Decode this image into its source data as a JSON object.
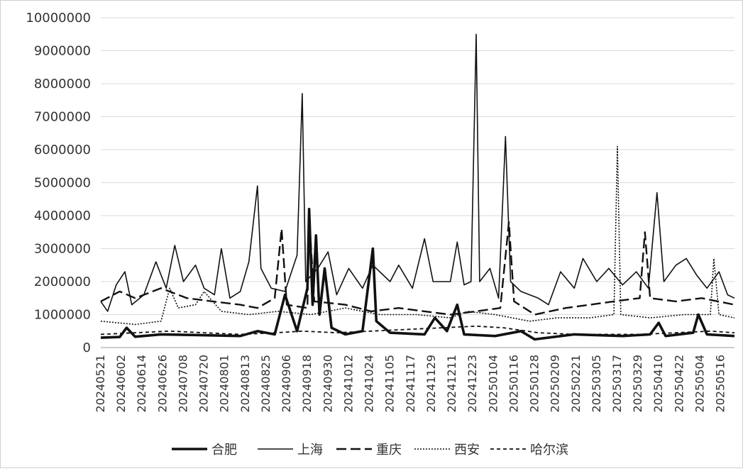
{
  "chart_data": {
    "type": "line",
    "title": "",
    "xlabel": "",
    "ylabel": "",
    "ylim": [
      0,
      10000000
    ],
    "y_ticks": [
      "0",
      "1000000",
      "2000000",
      "3000000",
      "4000000",
      "5000000",
      "6000000",
      "7000000",
      "8000000",
      "9000000",
      "10000000"
    ],
    "x_range": [
      "2024-05-21",
      "2025-05-24"
    ],
    "x_tick_labels": [
      "20240521",
      "20240602",
      "20240614",
      "20240626",
      "20240708",
      "20240720",
      "20240801",
      "20240813",
      "20240825",
      "20240906",
      "20240918",
      "20240930",
      "20241012",
      "20241024",
      "20241105",
      "20241117",
      "20241129",
      "20241211",
      "20241223",
      "20250104",
      "20250116",
      "20250128",
      "20250209",
      "20250221",
      "20250305",
      "20250317",
      "20250329",
      "20250410",
      "20250422",
      "20250504",
      "20250516"
    ],
    "grid": "horizontal",
    "legend_position": "bottom",
    "series": [
      {
        "name": "合肥",
        "style": "solid-thick",
        "values": [
          {
            "x": "2024-05-21",
            "y": 300000
          },
          {
            "x": "2024-06-01",
            "y": 320000
          },
          {
            "x": "2024-06-05",
            "y": 600000
          },
          {
            "x": "2024-06-10",
            "y": 330000
          },
          {
            "x": "2024-06-25",
            "y": 400000
          },
          {
            "x": "2024-07-15",
            "y": 380000
          },
          {
            "x": "2024-08-10",
            "y": 350000
          },
          {
            "x": "2024-08-20",
            "y": 500000
          },
          {
            "x": "2024-08-30",
            "y": 400000
          },
          {
            "x": "2024-09-05",
            "y": 1600000
          },
          {
            "x": "2024-09-12",
            "y": 500000
          },
          {
            "x": "2024-09-18",
            "y": 1800000
          },
          {
            "x": "2024-09-19",
            "y": 4200000
          },
          {
            "x": "2024-09-21",
            "y": 1300000
          },
          {
            "x": "2024-09-23",
            "y": 3400000
          },
          {
            "x": "2024-09-25",
            "y": 1000000
          },
          {
            "x": "2024-09-28",
            "y": 2400000
          },
          {
            "x": "2024-10-02",
            "y": 600000
          },
          {
            "x": "2024-10-10",
            "y": 400000
          },
          {
            "x": "2024-10-20",
            "y": 500000
          },
          {
            "x": "2024-10-26",
            "y": 3000000
          },
          {
            "x": "2024-10-28",
            "y": 800000
          },
          {
            "x": "2024-11-05",
            "y": 450000
          },
          {
            "x": "2024-11-25",
            "y": 400000
          },
          {
            "x": "2024-12-01",
            "y": 900000
          },
          {
            "x": "2024-12-08",
            "y": 500000
          },
          {
            "x": "2024-12-14",
            "y": 1300000
          },
          {
            "x": "2024-12-18",
            "y": 400000
          },
          {
            "x": "2025-01-05",
            "y": 350000
          },
          {
            "x": "2025-01-20",
            "y": 500000
          },
          {
            "x": "2025-01-28",
            "y": 250000
          },
          {
            "x": "2025-02-20",
            "y": 400000
          },
          {
            "x": "2025-03-20",
            "y": 350000
          },
          {
            "x": "2025-04-05",
            "y": 400000
          },
          {
            "x": "2025-04-10",
            "y": 750000
          },
          {
            "x": "2025-04-14",
            "y": 350000
          },
          {
            "x": "2025-04-30",
            "y": 450000
          },
          {
            "x": "2025-05-03",
            "y": 1000000
          },
          {
            "x": "2025-05-08",
            "y": 400000
          },
          {
            "x": "2025-05-24",
            "y": 350000
          }
        ]
      },
      {
        "name": "上海",
        "style": "solid",
        "values": [
          {
            "x": "2024-05-21",
            "y": 1400000
          },
          {
            "x": "2024-05-25",
            "y": 1100000
          },
          {
            "x": "2024-05-30",
            "y": 1900000
          },
          {
            "x": "2024-06-04",
            "y": 2300000
          },
          {
            "x": "2024-06-08",
            "y": 1300000
          },
          {
            "x": "2024-06-15",
            "y": 1600000
          },
          {
            "x": "2024-06-22",
            "y": 2600000
          },
          {
            "x": "2024-06-28",
            "y": 1800000
          },
          {
            "x": "2024-07-03",
            "y": 3100000
          },
          {
            "x": "2024-07-08",
            "y": 2000000
          },
          {
            "x": "2024-07-15",
            "y": 2500000
          },
          {
            "x": "2024-07-20",
            "y": 1800000
          },
          {
            "x": "2024-07-26",
            "y": 1600000
          },
          {
            "x": "2024-07-30",
            "y": 3000000
          },
          {
            "x": "2024-08-04",
            "y": 1500000
          },
          {
            "x": "2024-08-10",
            "y": 1700000
          },
          {
            "x": "2024-08-15",
            "y": 2600000
          },
          {
            "x": "2024-08-20",
            "y": 4900000
          },
          {
            "x": "2024-08-22",
            "y": 2400000
          },
          {
            "x": "2024-08-28",
            "y": 1800000
          },
          {
            "x": "2024-09-05",
            "y": 1700000
          },
          {
            "x": "2024-09-12",
            "y": 2800000
          },
          {
            "x": "2024-09-15",
            "y": 7700000
          },
          {
            "x": "2024-09-17",
            "y": 2000000
          },
          {
            "x": "2024-09-24",
            "y": 2400000
          },
          {
            "x": "2024-09-30",
            "y": 2900000
          },
          {
            "x": "2024-10-05",
            "y": 1600000
          },
          {
            "x": "2024-10-12",
            "y": 2400000
          },
          {
            "x": "2024-10-20",
            "y": 1800000
          },
          {
            "x": "2024-10-26",
            "y": 2500000
          },
          {
            "x": "2024-11-05",
            "y": 2000000
          },
          {
            "x": "2024-11-10",
            "y": 2500000
          },
          {
            "x": "2024-11-18",
            "y": 1800000
          },
          {
            "x": "2024-11-25",
            "y": 3300000
          },
          {
            "x": "2024-11-30",
            "y": 2000000
          },
          {
            "x": "2024-12-10",
            "y": 2000000
          },
          {
            "x": "2024-12-14",
            "y": 3200000
          },
          {
            "x": "2024-12-18",
            "y": 1900000
          },
          {
            "x": "2024-12-22",
            "y": 2000000
          },
          {
            "x": "2024-12-25",
            "y": 9500000
          },
          {
            "x": "2024-12-27",
            "y": 2000000
          },
          {
            "x": "2025-01-02",
            "y": 2400000
          },
          {
            "x": "2025-01-07",
            "y": 1500000
          },
          {
            "x": "2025-01-11",
            "y": 6400000
          },
          {
            "x": "2025-01-14",
            "y": 2000000
          },
          {
            "x": "2025-01-20",
            "y": 1700000
          },
          {
            "x": "2025-01-30",
            "y": 1500000
          },
          {
            "x": "2025-02-05",
            "y": 1300000
          },
          {
            "x": "2025-02-12",
            "y": 2300000
          },
          {
            "x": "2025-02-20",
            "y": 1800000
          },
          {
            "x": "2025-02-25",
            "y": 2700000
          },
          {
            "x": "2025-03-05",
            "y": 2000000
          },
          {
            "x": "2025-03-12",
            "y": 2400000
          },
          {
            "x": "2025-03-20",
            "y": 1900000
          },
          {
            "x": "2025-03-28",
            "y": 2300000
          },
          {
            "x": "2025-04-04",
            "y": 1800000
          },
          {
            "x": "2025-04-09",
            "y": 4700000
          },
          {
            "x": "2025-04-13",
            "y": 2000000
          },
          {
            "x": "2025-04-20",
            "y": 2500000
          },
          {
            "x": "2025-04-26",
            "y": 2700000
          },
          {
            "x": "2025-05-02",
            "y": 2200000
          },
          {
            "x": "2025-05-08",
            "y": 1800000
          },
          {
            "x": "2025-05-15",
            "y": 2300000
          },
          {
            "x": "2025-05-20",
            "y": 1600000
          },
          {
            "x": "2025-05-24",
            "y": 1500000
          }
        ]
      },
      {
        "name": "重庆",
        "style": "long-dash",
        "values": [
          {
            "x": "2024-05-21",
            "y": 1400000
          },
          {
            "x": "2024-06-01",
            "y": 1700000
          },
          {
            "x": "2024-06-10",
            "y": 1500000
          },
          {
            "x": "2024-06-25",
            "y": 1800000
          },
          {
            "x": "2024-07-10",
            "y": 1500000
          },
          {
            "x": "2024-07-25",
            "y": 1400000
          },
          {
            "x": "2024-08-10",
            "y": 1300000
          },
          {
            "x": "2024-08-20",
            "y": 1200000
          },
          {
            "x": "2024-08-30",
            "y": 1500000
          },
          {
            "x": "2024-09-03",
            "y": 3600000
          },
          {
            "x": "2024-09-06",
            "y": 1300000
          },
          {
            "x": "2024-09-18",
            "y": 1200000
          },
          {
            "x": "2024-09-19",
            "y": 4000000
          },
          {
            "x": "2024-09-22",
            "y": 1400000
          },
          {
            "x": "2024-10-10",
            "y": 1300000
          },
          {
            "x": "2024-10-25",
            "y": 1100000
          },
          {
            "x": "2024-11-10",
            "y": 1200000
          },
          {
            "x": "2024-11-25",
            "y": 1100000
          },
          {
            "x": "2024-12-10",
            "y": 1000000
          },
          {
            "x": "2024-12-25",
            "y": 1100000
          },
          {
            "x": "2025-01-08",
            "y": 1200000
          },
          {
            "x": "2025-01-13",
            "y": 3800000
          },
          {
            "x": "2025-01-16",
            "y": 1400000
          },
          {
            "x": "2025-01-28",
            "y": 1000000
          },
          {
            "x": "2025-02-15",
            "y": 1200000
          },
          {
            "x": "2025-03-01",
            "y": 1300000
          },
          {
            "x": "2025-03-15",
            "y": 1400000
          },
          {
            "x": "2025-03-30",
            "y": 1500000
          },
          {
            "x": "2025-04-02",
            "y": 3500000
          },
          {
            "x": "2025-04-05",
            "y": 1500000
          },
          {
            "x": "2025-04-20",
            "y": 1400000
          },
          {
            "x": "2025-05-05",
            "y": 1500000
          },
          {
            "x": "2025-05-24",
            "y": 1300000
          }
        ]
      },
      {
        "name": "西安",
        "style": "dotted",
        "values": [
          {
            "x": "2024-05-21",
            "y": 800000
          },
          {
            "x": "2024-06-10",
            "y": 700000
          },
          {
            "x": "2024-06-25",
            "y": 800000
          },
          {
            "x": "2024-06-30",
            "y": 1800000
          },
          {
            "x": "2024-07-05",
            "y": 1200000
          },
          {
            "x": "2024-07-15",
            "y": 1300000
          },
          {
            "x": "2024-07-20",
            "y": 1700000
          },
          {
            "x": "2024-07-30",
            "y": 1100000
          },
          {
            "x": "2024-08-15",
            "y": 1000000
          },
          {
            "x": "2024-09-01",
            "y": 1100000
          },
          {
            "x": "2024-09-20",
            "y": 1000000
          },
          {
            "x": "2024-10-10",
            "y": 1200000
          },
          {
            "x": "2024-10-30",
            "y": 1000000
          },
          {
            "x": "2024-11-20",
            "y": 1000000
          },
          {
            "x": "2024-12-10",
            "y": 900000
          },
          {
            "x": "2024-12-20",
            "y": 1100000
          },
          {
            "x": "2025-01-05",
            "y": 1000000
          },
          {
            "x": "2025-01-25",
            "y": 800000
          },
          {
            "x": "2025-02-10",
            "y": 900000
          },
          {
            "x": "2025-03-01",
            "y": 900000
          },
          {
            "x": "2025-03-15",
            "y": 1000000
          },
          {
            "x": "2025-03-17",
            "y": 6100000
          },
          {
            "x": "2025-03-19",
            "y": 1000000
          },
          {
            "x": "2025-04-05",
            "y": 900000
          },
          {
            "x": "2025-04-25",
            "y": 1000000
          },
          {
            "x": "2025-05-10",
            "y": 1000000
          },
          {
            "x": "2025-05-12",
            "y": 2700000
          },
          {
            "x": "2025-05-15",
            "y": 1000000
          },
          {
            "x": "2025-05-24",
            "y": 900000
          }
        ]
      },
      {
        "name": "哈尔滨",
        "style": "short-dash",
        "values": [
          {
            "x": "2024-05-21",
            "y": 400000
          },
          {
            "x": "2024-06-10",
            "y": 450000
          },
          {
            "x": "2024-06-30",
            "y": 500000
          },
          {
            "x": "2024-07-20",
            "y": 450000
          },
          {
            "x": "2024-08-10",
            "y": 400000
          },
          {
            "x": "2024-08-31",
            "y": 450000
          },
          {
            "x": "2024-09-15",
            "y": 500000
          },
          {
            "x": "2024-10-05",
            "y": 450000
          },
          {
            "x": "2024-10-25",
            "y": 500000
          },
          {
            "x": "2024-11-15",
            "y": 550000
          },
          {
            "x": "2024-12-05",
            "y": 600000
          },
          {
            "x": "2024-12-25",
            "y": 650000
          },
          {
            "x": "2025-01-10",
            "y": 600000
          },
          {
            "x": "2025-01-30",
            "y": 450000
          },
          {
            "x": "2025-02-20",
            "y": 400000
          },
          {
            "x": "2025-03-10",
            "y": 400000
          },
          {
            "x": "2025-03-30",
            "y": 400000
          },
          {
            "x": "2025-04-20",
            "y": 450000
          },
          {
            "x": "2025-05-10",
            "y": 500000
          },
          {
            "x": "2025-05-24",
            "y": 450000
          }
        ]
      }
    ]
  }
}
